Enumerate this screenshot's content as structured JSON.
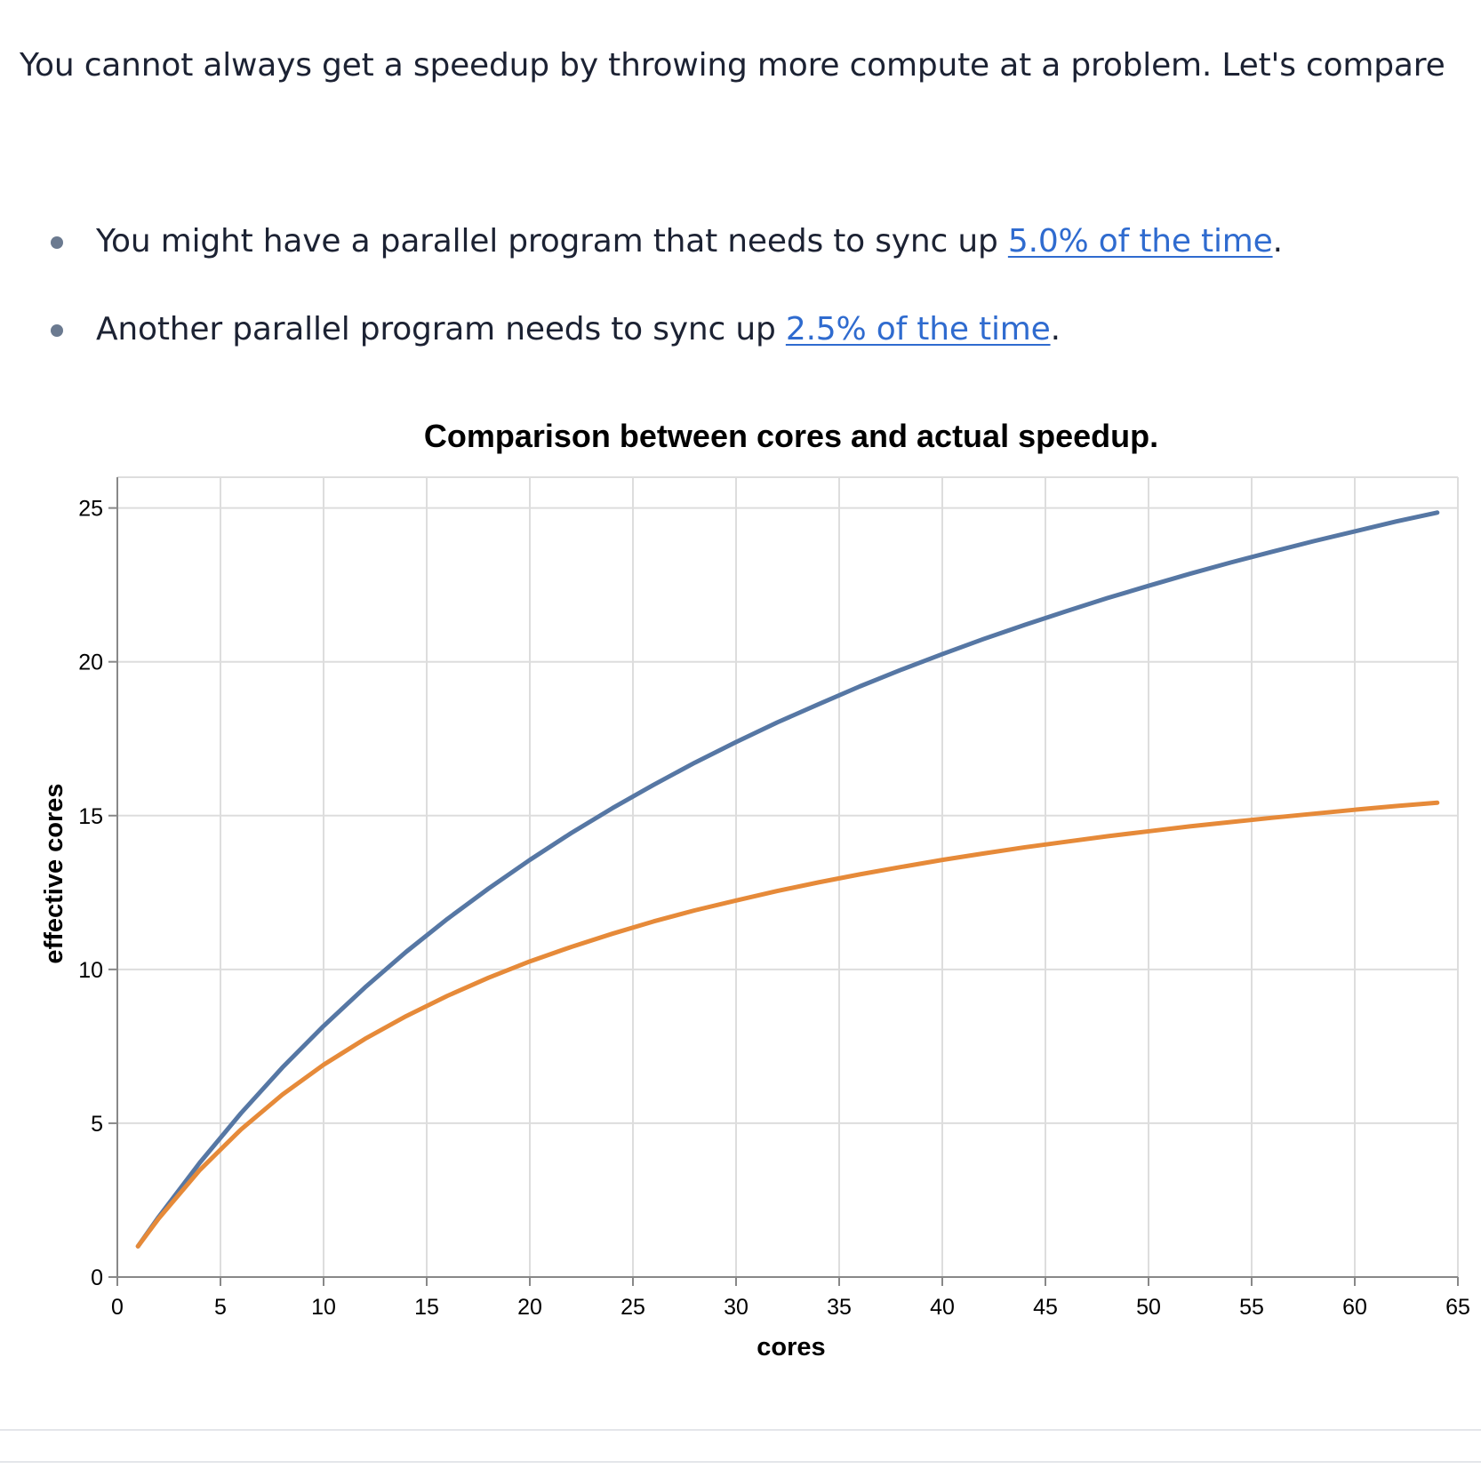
{
  "intro": {
    "text": "You cannot always get a speedup by throwing more compute at a problem. Let's compare"
  },
  "bullets": [
    {
      "prefix": "You might have a parallel program that needs to sync up ",
      "link": "5.0% of the time",
      "suffix": "."
    },
    {
      "prefix": "Another parallel program needs to sync up ",
      "link": "2.5% of the time",
      "suffix": "."
    }
  ],
  "colors": {
    "series_a": "#5677a4",
    "series_b": "#e68a39",
    "grid": "#dddddd",
    "axis": "#888888",
    "link": "#2f6bcf"
  },
  "chart_data": {
    "type": "line",
    "title": "Comparison between cores and actual speedup.",
    "xlabel": "cores",
    "ylabel": "effective cores",
    "xlim": [
      0,
      65
    ],
    "ylim": [
      0,
      26
    ],
    "xticks": [
      0,
      5,
      10,
      15,
      20,
      25,
      30,
      35,
      40,
      45,
      50,
      55,
      60,
      65
    ],
    "yticks": [
      0,
      5,
      10,
      15,
      20,
      25
    ],
    "grid": true,
    "x": [
      1,
      2,
      4,
      6,
      8,
      10,
      12,
      14,
      16,
      18,
      20,
      22,
      24,
      26,
      28,
      30,
      32,
      34,
      36,
      38,
      40,
      42,
      44,
      46,
      48,
      50,
      52,
      54,
      56,
      58,
      60,
      62,
      64
    ],
    "series": [
      {
        "name": "sync 2.5% of the time",
        "values": [
          1.0,
          1.95,
          3.72,
          5.33,
          6.81,
          8.16,
          9.41,
          10.57,
          11.64,
          12.63,
          13.56,
          14.43,
          15.24,
          16.0,
          16.72,
          17.39,
          18.03,
          18.62,
          19.2,
          19.74,
          20.25,
          20.74,
          21.2,
          21.64,
          22.07,
          22.47,
          22.86,
          23.23,
          23.58,
          23.92,
          24.24,
          24.56,
          24.85
        ],
        "color": "#5677a4"
      },
      {
        "name": "sync 5.0% of the time",
        "values": [
          1.0,
          1.9,
          3.48,
          4.8,
          5.93,
          6.9,
          7.74,
          8.48,
          9.14,
          9.73,
          10.26,
          10.73,
          11.16,
          11.56,
          11.92,
          12.24,
          12.55,
          12.83,
          13.09,
          13.33,
          13.56,
          13.77,
          13.97,
          14.15,
          14.33,
          14.49,
          14.65,
          14.79,
          14.93,
          15.06,
          15.19,
          15.31,
          15.42
        ],
        "color": "#e68a39"
      }
    ]
  }
}
